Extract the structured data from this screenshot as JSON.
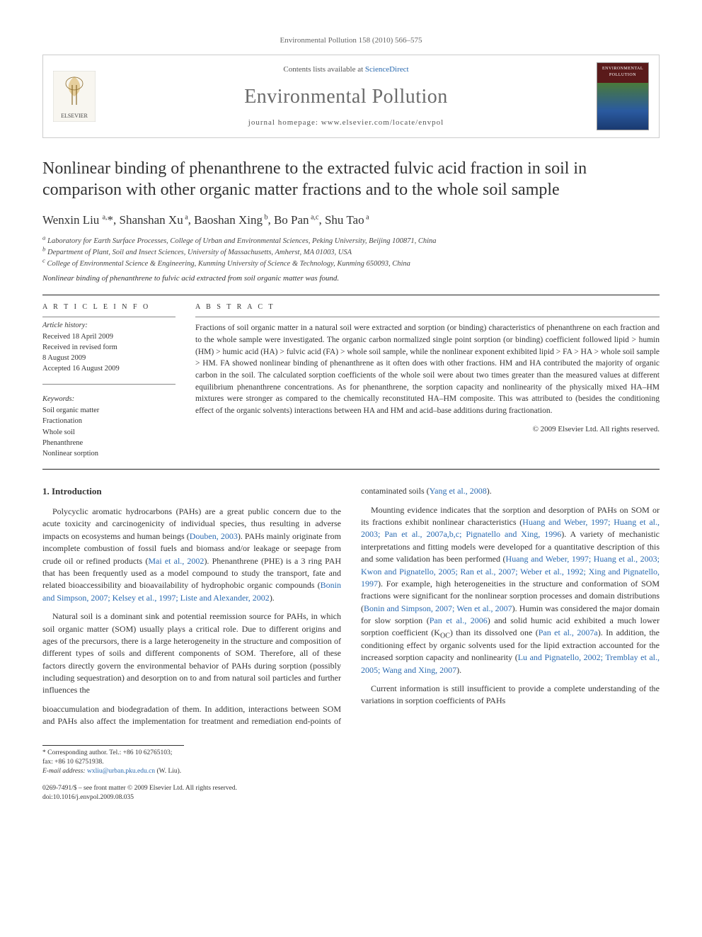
{
  "running_head": "Environmental Pollution 158 (2010) 566–575",
  "header": {
    "contents_prefix": "Contents lists available at ",
    "contents_link": "ScienceDirect",
    "journal": "Environmental Pollution",
    "homepage": "journal homepage: www.elsevier.com/locate/envpol",
    "cover_label": "ENVIRONMENTAL POLLUTION",
    "elsevier_label": "ELSEVIER"
  },
  "title": "Nonlinear binding of phenanthrene to the extracted fulvic acid fraction in soil in comparison with other organic matter fractions and to the whole soil sample",
  "authors_html": "Wenxin Liu <sup>a,</sup>*, Shanshan Xu<sup> a</sup>, Baoshan Xing<sup> b</sup>, Bo Pan<sup> a,c</sup>, Shu Tao<sup> a</sup>",
  "affiliations": [
    "a Laboratory for Earth Surface Processes, College of Urban and Environmental Sciences, Peking University, Beijing 100871, China",
    "b Department of Plant, Soil and Insect Sciences, University of Massachusetts, Amherst, MA 01003, USA",
    "c College of Environmental Science & Engineering, Kunming University of Science & Technology, Kunming 650093, China"
  ],
  "highlight": "Nonlinear binding of phenanthrene to fulvic acid extracted from soil organic matter was found.",
  "article_info_label": "A R T I C L E   I N F O",
  "abstract_label": "A B S T R A C T",
  "history": {
    "label": "Article history:",
    "lines": [
      "Received 18 April 2009",
      "Received in revised form",
      "8 August 2009",
      "Accepted 16 August 2009"
    ]
  },
  "keywords": {
    "label": "Keywords:",
    "items": [
      "Soil organic matter",
      "Fractionation",
      "Whole soil",
      "Phenanthrene",
      "Nonlinear sorption"
    ]
  },
  "abstract": "Fractions of soil organic matter in a natural soil were extracted and sorption (or binding) characteristics of phenanthrene on each fraction and to the whole sample were investigated. The organic carbon normalized single point sorption (or binding) coefficient followed lipid > humin (HM) > humic acid (HA) > fulvic acid (FA) > whole soil sample, while the nonlinear exponent exhibited lipid > FA > HA > whole soil sample > HM. FA showed nonlinear binding of phenanthrene as it often does with other fractions. HM and HA contributed the majority of organic carbon in the soil. The calculated sorption coefficients of the whole soil were about two times greater than the measured values at different equilibrium phenanthrene concentrations. As for phenanthrene, the sorption capacity and nonlinearity of the physically mixed HA–HM mixtures were stronger as compared to the chemically reconstituted HA–HM composite. This was attributed to (besides the conditioning effect of the organic solvents) interactions between HA and HM and acid–base additions during fractionation.",
  "copyright": "© 2009 Elsevier Ltd. All rights reserved.",
  "section1": {
    "heading": "1. Introduction",
    "p1a": "Polycyclic aromatic hydrocarbons (PAHs) are a great public concern due to the acute toxicity and carcinogenicity of individual species, thus resulting in adverse impacts on ecosystems and human beings (",
    "c1": "Douben, 2003",
    "p1b": "). PAHs mainly originate from incomplete combustion of fossil fuels and biomass and/or leakage or seepage from crude oil or refined products (",
    "c2": "Mai et al., 2002",
    "p1c": "). Phenanthrene (PHE) is a 3 ring PAH that has been frequently used as a model compound to study the transport, fate and related bioaccessibility and bioavailability of hydrophobic organic compounds (",
    "c3": "Bonin and Simpson, 2007; Kelsey et al., 1997; Liste and Alexander, 2002",
    "p1d": ").",
    "p2": "Natural soil is a dominant sink and potential reemission source for PAHs, in which soil organic matter (SOM) usually plays a critical role. Due to different origins and ages of the precursors, there is a large heterogeneity in the structure and composition of different types of soils and different components of SOM. Therefore, all of these factors directly govern the environmental behavior of PAHs during sorption (possibly including sequestration) and desorption on to and from natural soil particles and further influences the",
    "p3a": "bioaccumulation and biodegradation of them. In addition, interactions between SOM and PAHs also affect the implementation for treatment and remediation end-points of contaminated soils (",
    "c4": "Yang et al., 2008",
    "p3b": ").",
    "p4a": "Mounting evidence indicates that the sorption and desorption of PAHs on SOM or its fractions exhibit nonlinear characteristics (",
    "c5": "Huang and Weber, 1997; Huang et al., 2003; Pan et al., 2007a,b,c; Pignatello and Xing, 1996",
    "p4b": "). A variety of mechanistic interpretations and fitting models were developed for a quantitative description of this and some validation has been performed (",
    "c6": "Huang and Weber, 1997; Huang et al., 2003; Kwon and Pignatello, 2005; Ran et al., 2007; Weber et al., 1992; Xing and Pignatello, 1997",
    "p4c": "). For example, high heterogeneities in the structure and conformation of SOM fractions were significant for the nonlinear sorption processes and domain distributions (",
    "c7": "Bonin and Simpson, 2007; Wen et al., 2007",
    "p4d": "). Humin was considered the major domain for slow sorption (",
    "c8": "Pan et al., 2006",
    "p4e": ") and solid humic acid exhibited a much lower sorption coefficient (K",
    "koc": "OC",
    "p4f": ") than its dissolved one (",
    "c9": "Pan et al., 2007a",
    "p4g": "). In addition, the conditioning effect by organic solvents used for the lipid extraction accounted for the increased sorption capacity and nonlinearity (",
    "c10": "Lu and Pignatello, 2002; Tremblay et al., 2005; Wang and Xing, 2007",
    "p4h": ").",
    "p5": "Current information is still insufficient to provide a complete understanding of the variations in sorption coefficients of PAHs"
  },
  "corr": {
    "line1": "* Corresponding author. Tel.: +86 10 62765103; fax: +86 10 62751938.",
    "line2_label": "E-mail address: ",
    "email": "wxliu@urban.pku.edu.cn",
    "line2_tail": " (W. Liu)."
  },
  "issn": {
    "line1": "0269-7491/$ – see front matter © 2009 Elsevier Ltd. All rights reserved.",
    "line2": "doi:10.1016/j.envpol.2009.08.035"
  },
  "colors": {
    "link": "#2a6ab0",
    "text": "#333333",
    "muted": "#666666",
    "rule": "#222222",
    "box_border": "#cccccc"
  }
}
